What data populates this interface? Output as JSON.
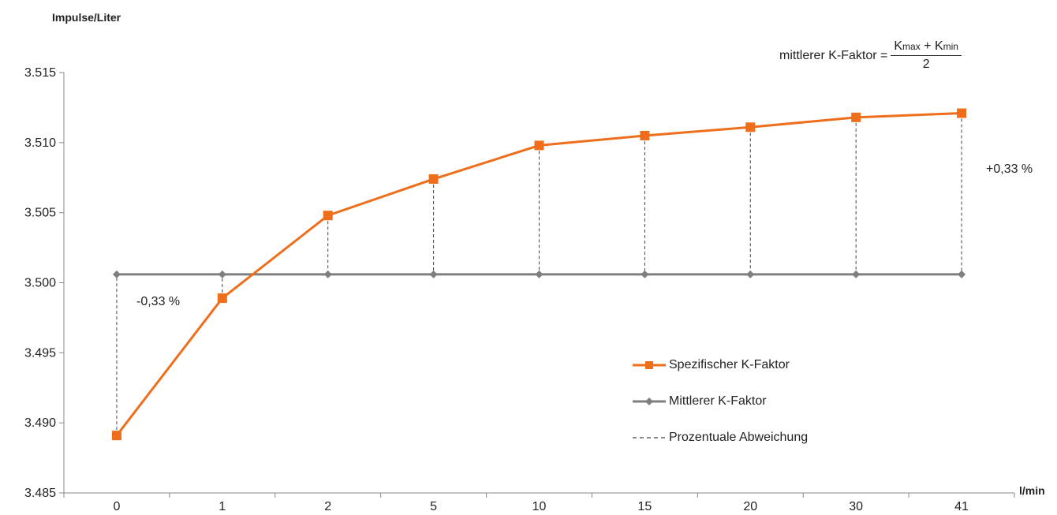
{
  "chart_data": {
    "type": "line",
    "categories": [
      "0",
      "1",
      "2",
      "5",
      "10",
      "15",
      "20",
      "30",
      "41"
    ],
    "series": [
      {
        "name": "Spezifischer K-Faktor",
        "values": [
          3.4891,
          3.4989,
          3.5048,
          3.5074,
          3.5098,
          3.5105,
          3.5111,
          3.5118,
          3.5121
        ],
        "color": "#ee6e1c",
        "marker": "square"
      },
      {
        "name": "Mittlerer K-Faktor",
        "values": [
          3.5006,
          3.5006,
          3.5006,
          3.5006,
          3.5006,
          3.5006,
          3.5006,
          3.5006,
          3.5006
        ],
        "color": "#7f7f7f",
        "marker": "diamond"
      }
    ],
    "deviation_label": "Prozentuale Abweichung",
    "xlabel": "l/min",
    "ylabel": "Impulse/Liter",
    "ylim": [
      3.485,
      3.515
    ],
    "yticks": [
      "3.485",
      "3.490",
      "3.495",
      "3.500",
      "3.505",
      "3.510",
      "3.515"
    ],
    "annotations": {
      "minus": "-0,33 %",
      "plus": "+0,33 %"
    },
    "formula": {
      "lhs": "mittlerer K-Faktor =",
      "kmax_base": "K",
      "kmax_sub": "max",
      "plus": "+",
      "kmin_base": "K",
      "kmin_sub": "min",
      "denominator": "2"
    },
    "legend_position": "bottom-right"
  }
}
